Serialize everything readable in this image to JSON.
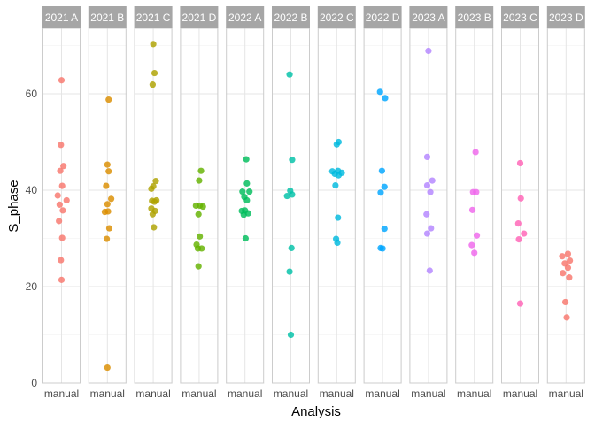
{
  "chart_data": {
    "type": "scatter",
    "xlabel": "Analysis",
    "ylabel": "S_phase",
    "x_tick_label": "manual",
    "ylim": [
      0,
      73
    ],
    "yticks": [
      0,
      20,
      40,
      60
    ],
    "grid": true,
    "facet_strip_color": "#a6a6a6",
    "panel_border_color": "#cccccc",
    "grid_color": "#e5e5e5",
    "facets": [
      {
        "name": "2021 A",
        "color": "#F8766D",
        "points": [
          {
            "x": 0.0,
            "y": 62.8
          },
          {
            "x": -0.02,
            "y": 49.4
          },
          {
            "x": 0.06,
            "y": 45.0
          },
          {
            "x": -0.04,
            "y": 44.0
          },
          {
            "x": 0.02,
            "y": 40.9
          },
          {
            "x": -0.12,
            "y": 38.9
          },
          {
            "x": 0.16,
            "y": 37.9
          },
          {
            "x": -0.06,
            "y": 37.0
          },
          {
            "x": 0.04,
            "y": 35.8
          },
          {
            "x": -0.08,
            "y": 33.6
          },
          {
            "x": 0.02,
            "y": 30.1
          },
          {
            "x": -0.02,
            "y": 25.5
          },
          {
            "x": 0.0,
            "y": 21.4
          }
        ]
      },
      {
        "name": "2021 B",
        "color": "#DB8E00",
        "points": [
          {
            "x": 0.04,
            "y": 58.8
          },
          {
            "x": 0.0,
            "y": 45.3
          },
          {
            "x": 0.04,
            "y": 43.9
          },
          {
            "x": -0.04,
            "y": 40.9
          },
          {
            "x": 0.12,
            "y": 38.2
          },
          {
            "x": 0.0,
            "y": 37.1
          },
          {
            "x": -0.08,
            "y": 35.5
          },
          {
            "x": 0.02,
            "y": 35.6
          },
          {
            "x": 0.06,
            "y": 32.1
          },
          {
            "x": -0.02,
            "y": 29.9
          },
          {
            "x": 0.0,
            "y": 3.2
          }
        ]
      },
      {
        "name": "2021 C",
        "color": "#AEA200",
        "points": [
          {
            "x": 0.0,
            "y": 70.3
          },
          {
            "x": 0.04,
            "y": 64.3
          },
          {
            "x": -0.02,
            "y": 61.9
          },
          {
            "x": 0.08,
            "y": 41.9
          },
          {
            "x": -0.06,
            "y": 40.3
          },
          {
            "x": 0.0,
            "y": 40.8
          },
          {
            "x": 0.1,
            "y": 37.9
          },
          {
            "x": -0.04,
            "y": 37.8
          },
          {
            "x": 0.04,
            "y": 37.6
          },
          {
            "x": -0.06,
            "y": 36.2
          },
          {
            "x": 0.06,
            "y": 35.7
          },
          {
            "x": -0.02,
            "y": 35.0
          },
          {
            "x": 0.02,
            "y": 32.3
          }
        ]
      },
      {
        "name": "2021 D",
        "color": "#64B200",
        "points": [
          {
            "x": 0.06,
            "y": 44.0
          },
          {
            "x": 0.0,
            "y": 42.0
          },
          {
            "x": -0.1,
            "y": 36.8
          },
          {
            "x": 0.02,
            "y": 36.8
          },
          {
            "x": 0.12,
            "y": 36.6
          },
          {
            "x": -0.02,
            "y": 35.0
          },
          {
            "x": 0.02,
            "y": 30.4
          },
          {
            "x": -0.08,
            "y": 28.7
          },
          {
            "x": -0.04,
            "y": 27.9
          },
          {
            "x": 0.08,
            "y": 27.9
          },
          {
            "x": -0.02,
            "y": 24.2
          }
        ]
      },
      {
        "name": "2022 A",
        "color": "#00BD5C",
        "points": [
          {
            "x": 0.04,
            "y": 46.4
          },
          {
            "x": 0.06,
            "y": 41.4
          },
          {
            "x": -0.08,
            "y": 39.7
          },
          {
            "x": 0.14,
            "y": 39.7
          },
          {
            "x": -0.02,
            "y": 38.6
          },
          {
            "x": 0.06,
            "y": 37.9
          },
          {
            "x": -0.1,
            "y": 35.7
          },
          {
            "x": 0.0,
            "y": 35.8
          },
          {
            "x": 0.1,
            "y": 35.2
          },
          {
            "x": -0.04,
            "y": 34.9
          },
          {
            "x": 0.02,
            "y": 30.0
          }
        ]
      },
      {
        "name": "2022 B",
        "color": "#00C1A7",
        "points": [
          {
            "x": -0.04,
            "y": 64.0
          },
          {
            "x": 0.04,
            "y": 46.3
          },
          {
            "x": -0.02,
            "y": 39.9
          },
          {
            "x": -0.12,
            "y": 38.8
          },
          {
            "x": 0.04,
            "y": 39.1
          },
          {
            "x": 0.02,
            "y": 28.0
          },
          {
            "x": -0.04,
            "y": 23.1
          },
          {
            "x": 0.0,
            "y": 10.0
          }
        ]
      },
      {
        "name": "2022 C",
        "color": "#00BADE",
        "points": [
          {
            "x": 0.06,
            "y": 50.0
          },
          {
            "x": 0.0,
            "y": 49.5
          },
          {
            "x": -0.14,
            "y": 43.9
          },
          {
            "x": 0.04,
            "y": 44.0
          },
          {
            "x": 0.16,
            "y": 43.6
          },
          {
            "x": -0.06,
            "y": 43.4
          },
          {
            "x": 0.06,
            "y": 43.1
          },
          {
            "x": -0.04,
            "y": 41.0
          },
          {
            "x": 0.04,
            "y": 34.3
          },
          {
            "x": -0.02,
            "y": 29.9
          },
          {
            "x": 0.02,
            "y": 29.1
          }
        ]
      },
      {
        "name": "2022 D",
        "color": "#00A6FF",
        "points": [
          {
            "x": -0.08,
            "y": 60.4
          },
          {
            "x": 0.08,
            "y": 59.1
          },
          {
            "x": -0.02,
            "y": 44.0
          },
          {
            "x": 0.06,
            "y": 40.7
          },
          {
            "x": -0.06,
            "y": 39.5
          },
          {
            "x": 0.06,
            "y": 32.0
          },
          {
            "x": -0.06,
            "y": 28.0
          },
          {
            "x": 0.0,
            "y": 27.9
          }
        ]
      },
      {
        "name": "2023 A",
        "color": "#B385FF",
        "points": [
          {
            "x": 0.0,
            "y": 68.9
          },
          {
            "x": -0.04,
            "y": 46.9
          },
          {
            "x": 0.12,
            "y": 42.0
          },
          {
            "x": -0.04,
            "y": 41.0
          },
          {
            "x": 0.06,
            "y": 39.6
          },
          {
            "x": -0.06,
            "y": 35.0
          },
          {
            "x": 0.08,
            "y": 32.1
          },
          {
            "x": -0.04,
            "y": 31.0
          },
          {
            "x": 0.04,
            "y": 23.3
          }
        ]
      },
      {
        "name": "2023 B",
        "color": "#EF67EB",
        "points": [
          {
            "x": 0.04,
            "y": 47.9
          },
          {
            "x": -0.04,
            "y": 39.6
          },
          {
            "x": 0.06,
            "y": 39.6
          },
          {
            "x": -0.06,
            "y": 35.9
          },
          {
            "x": 0.08,
            "y": 30.6
          },
          {
            "x": -0.08,
            "y": 28.6
          },
          {
            "x": 0.0,
            "y": 27.0
          }
        ]
      },
      {
        "name": "2023 C",
        "color": "#FF63B6",
        "points": [
          {
            "x": 0.0,
            "y": 45.6
          },
          {
            "x": 0.02,
            "y": 38.3
          },
          {
            "x": -0.06,
            "y": 33.1
          },
          {
            "x": 0.12,
            "y": 31.0
          },
          {
            "x": -0.04,
            "y": 29.8
          },
          {
            "x": 0.0,
            "y": 16.5
          }
        ]
      },
      {
        "name": "2023 D",
        "color": "#F8766D",
        "points": [
          {
            "x": -0.12,
            "y": 26.3
          },
          {
            "x": 0.12,
            "y": 25.4
          },
          {
            "x": 0.06,
            "y": 26.8
          },
          {
            "x": -0.04,
            "y": 24.8
          },
          {
            "x": 0.06,
            "y": 23.9
          },
          {
            "x": -0.1,
            "y": 22.8
          },
          {
            "x": 0.1,
            "y": 21.9
          },
          {
            "x": -0.02,
            "y": 16.8
          },
          {
            "x": 0.02,
            "y": 13.6
          }
        ]
      }
    ]
  }
}
